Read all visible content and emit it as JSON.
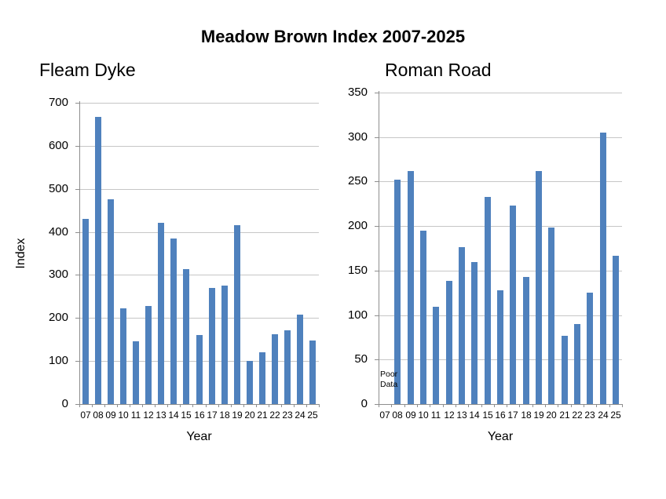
{
  "main_title": "Meadow Brown Index 2007-2025",
  "colors": {
    "bar": "#4F81BD",
    "gridline": "#C6C6C6",
    "axis": "#8E8E8E",
    "text": "#000000",
    "background": "#FFFFFF"
  },
  "chart_data": [
    {
      "id": "fleam-dyke",
      "type": "bar",
      "title": "Fleam Dyke",
      "xlabel": "Year",
      "ylabel": "Index",
      "ylim": [
        0,
        700
      ],
      "yticks": [
        0,
        100,
        200,
        300,
        400,
        500,
        600,
        700
      ],
      "grid": true,
      "legend": false,
      "categories": [
        "07",
        "08",
        "09",
        "10",
        "11",
        "12",
        "13",
        "14",
        "15",
        "16",
        "17",
        "18",
        "19",
        "20",
        "21",
        "22",
        "23",
        "24",
        "25"
      ],
      "values": [
        430,
        667,
        475,
        222,
        145,
        227,
        422,
        385,
        313,
        160,
        270,
        276,
        415,
        100,
        120,
        162,
        171,
        207,
        148
      ]
    },
    {
      "id": "roman-road",
      "type": "bar",
      "title": "Roman Road",
      "xlabel": "Year",
      "ylabel": "",
      "ylim": [
        0,
        350
      ],
      "yticks": [
        0,
        50,
        100,
        150,
        200,
        250,
        300,
        350
      ],
      "grid": true,
      "legend": false,
      "categories": [
        "07",
        "08",
        "09",
        "10",
        "11",
        "12",
        "13",
        "14",
        "15",
        "16",
        "17",
        "18",
        "19",
        "20",
        "21",
        "22",
        "23",
        "24",
        "25"
      ],
      "values": [
        null,
        252,
        262,
        195,
        109,
        138,
        176,
        160,
        233,
        128,
        223,
        143,
        262,
        198,
        77,
        90,
        125,
        305,
        167
      ],
      "annotation": {
        "text": "Poor Data",
        "lines": [
          "Poor",
          "Data"
        ],
        "at_category": "07"
      }
    }
  ]
}
